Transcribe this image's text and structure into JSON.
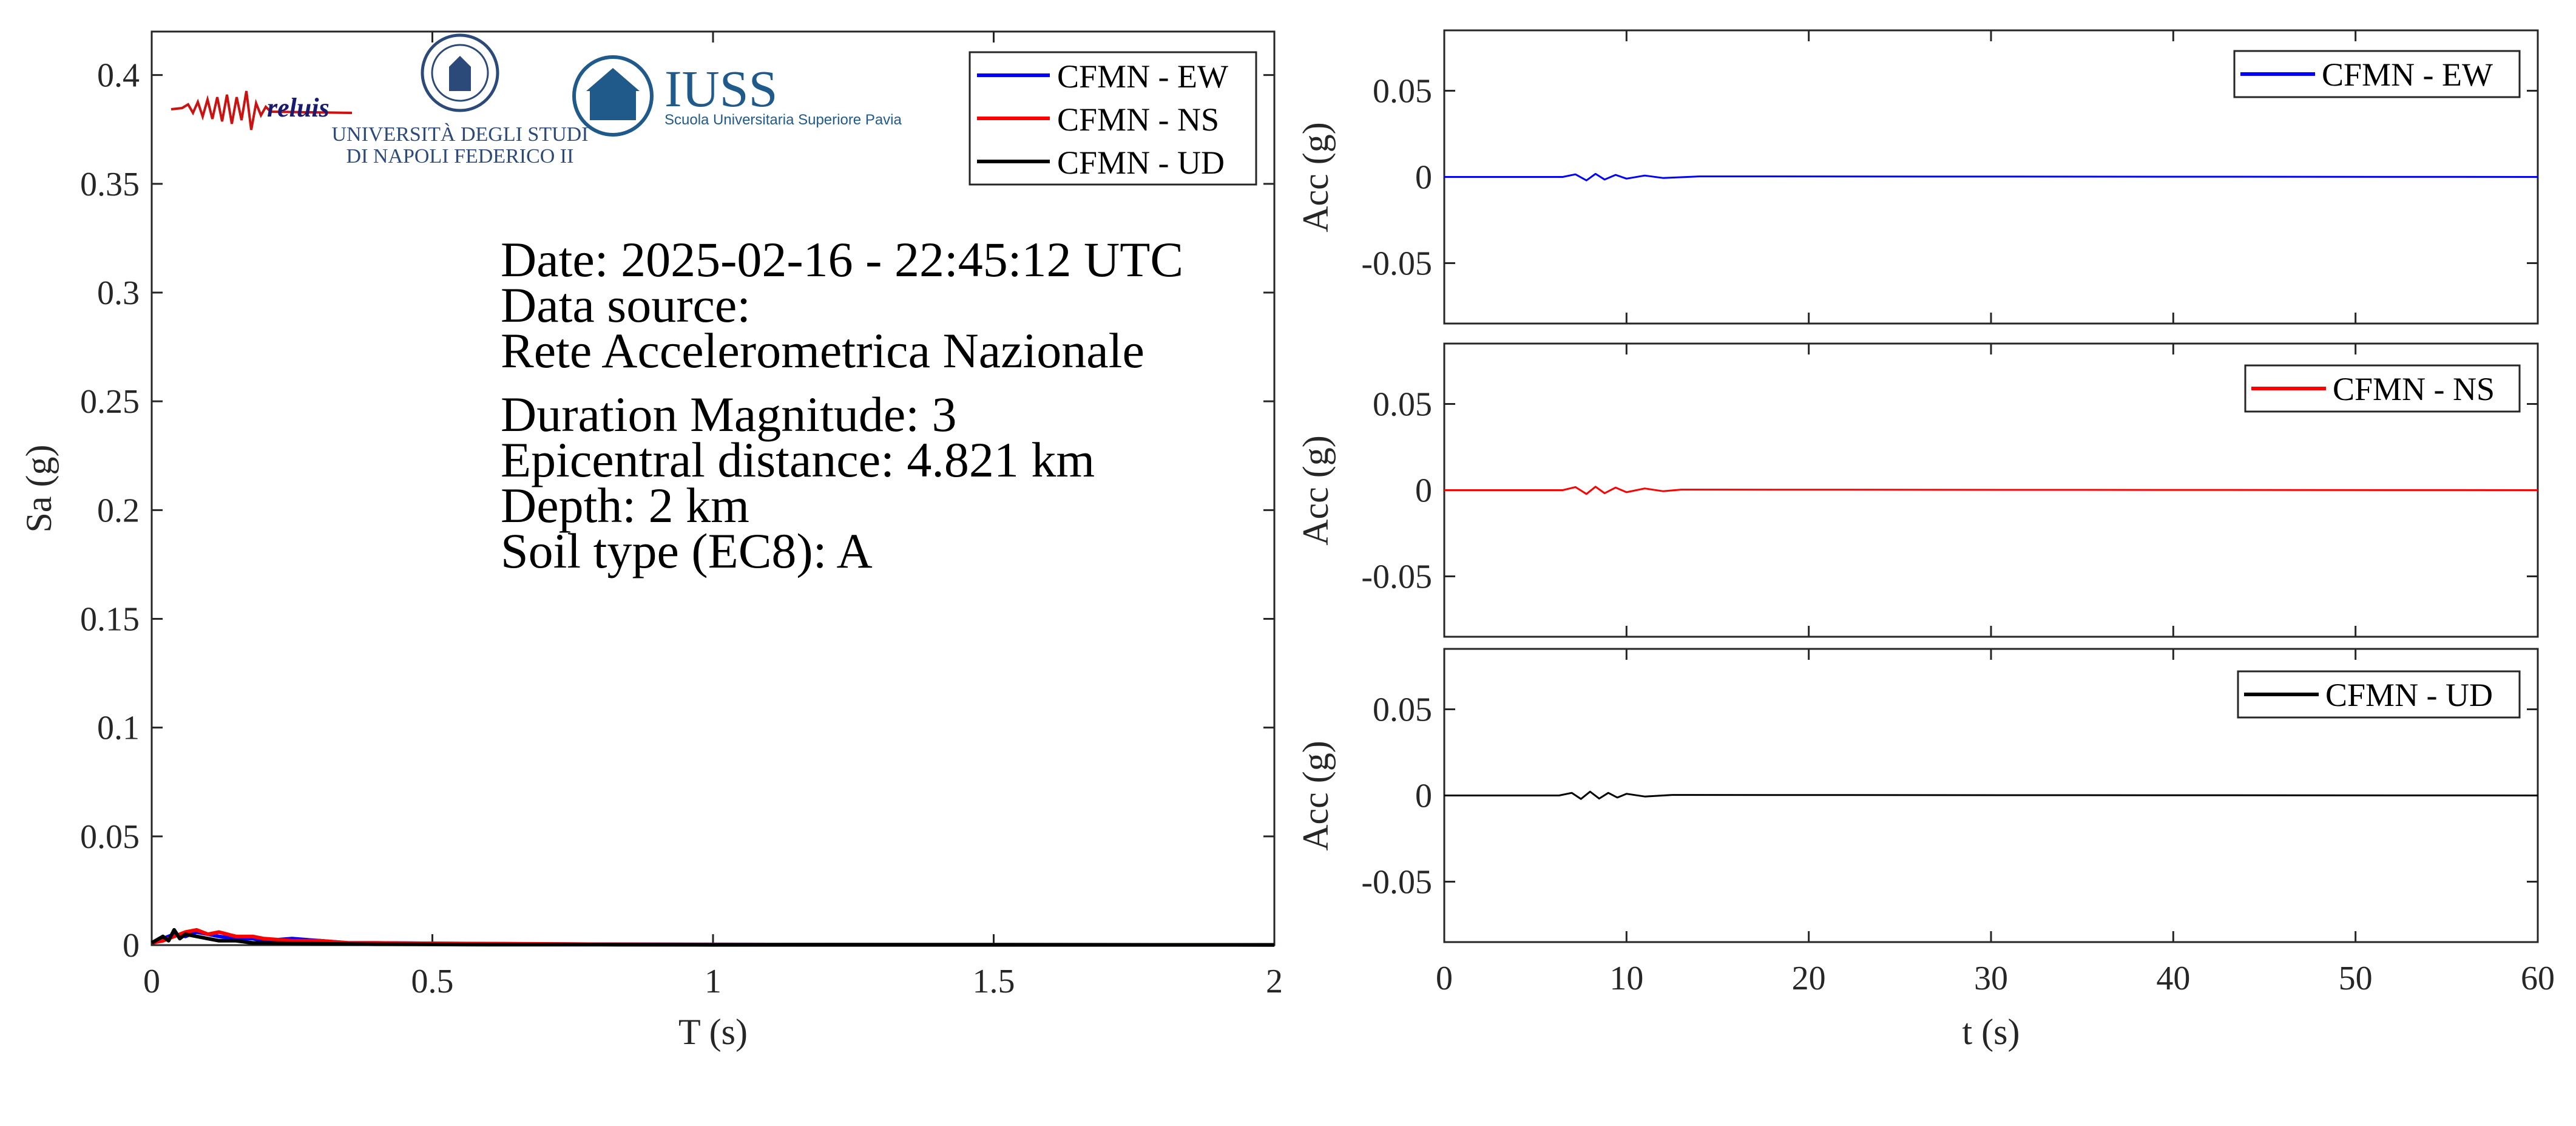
{
  "logos": {
    "reluis": "reluis",
    "unina_line1": "UNIVERSITÀ DEGLI STUDI",
    "unina_line2": "DI NAPOLI FEDERICO II",
    "iuss": "IUSS",
    "iuss_sub": "Scuola Universitaria Superiore Pavia"
  },
  "info": {
    "date": "Date: 2025-02-16 - 22:45:12 UTC",
    "source_label": "Data source:",
    "source_value": "Rete Accelerometrica Nazionale",
    "magnitude": "Duration Magnitude: 3",
    "distance": "Epicentral distance: 4.821 km",
    "depth": "Depth: 2 km",
    "soil": "Soil type (EC8): A"
  },
  "colors": {
    "ew": "#0000ff",
    "ns": "#ff0000",
    "ud": "#000000",
    "axis": "#262626"
  },
  "chart_data": [
    {
      "type": "line",
      "xlabel": "T (s)",
      "ylabel": "Sa (g)",
      "xlim": [
        0,
        2
      ],
      "ylim": [
        0,
        0.42
      ],
      "xticks": [
        0,
        0.5,
        1,
        1.5,
        2
      ],
      "xtick_labels": [
        "0",
        "0.5",
        "1",
        "1.5",
        "2"
      ],
      "yticks": [
        0,
        0.05,
        0.1,
        0.15,
        0.2,
        0.25,
        0.3,
        0.35,
        0.4
      ],
      "ytick_labels": [
        "0",
        "0.05",
        "0.1",
        "0.15",
        "0.2",
        "0.25",
        "0.3",
        "0.35",
        "0.4"
      ],
      "legend": "top-right",
      "grid": false,
      "series": [
        {
          "name": "CFMN - EW",
          "color": "#0000ff",
          "x": [
            0,
            0.02,
            0.04,
            0.06,
            0.08,
            0.1,
            0.12,
            0.15,
            0.18,
            0.2,
            0.25,
            0.3,
            0.35,
            0.4,
            0.5,
            0.6,
            0.8,
            1,
            1.5,
            2
          ],
          "y": [
            0.001,
            0.003,
            0.005,
            0.004,
            0.006,
            0.005,
            0.004,
            0.003,
            0.003,
            0.002,
            0.003,
            0.002,
            0.001,
            0.001,
            0.0008,
            0.0006,
            0.0004,
            0.0003,
            0.0002,
            0.0001
          ]
        },
        {
          "name": "CFMN - NS",
          "color": "#ff0000",
          "x": [
            0,
            0.02,
            0.04,
            0.06,
            0.08,
            0.1,
            0.12,
            0.15,
            0.18,
            0.2,
            0.25,
            0.3,
            0.35,
            0.4,
            0.5,
            0.6,
            0.8,
            1,
            1.5,
            2
          ],
          "y": [
            0.001,
            0.002,
            0.004,
            0.006,
            0.007,
            0.005,
            0.006,
            0.004,
            0.004,
            0.003,
            0.002,
            0.002,
            0.001,
            0.001,
            0.0008,
            0.0007,
            0.0004,
            0.0003,
            0.0002,
            0.0001
          ]
        },
        {
          "name": "CFMN - UD",
          "color": "#000000",
          "x": [
            0,
            0.02,
            0.03,
            0.04,
            0.05,
            0.06,
            0.08,
            0.1,
            0.12,
            0.15,
            0.18,
            0.2,
            0.25,
            0.3,
            0.4,
            0.5,
            0.6,
            0.8,
            1,
            1.5,
            2
          ],
          "y": [
            0.001,
            0.004,
            0.002,
            0.007,
            0.003,
            0.005,
            0.004,
            0.003,
            0.002,
            0.002,
            0.001,
            0.001,
            0.0008,
            0.0006,
            0.0004,
            0.0003,
            0.0002,
            0.0002,
            0.0001,
            0.0001,
            0.0001
          ]
        }
      ]
    },
    {
      "type": "line",
      "xlabel": "",
      "ylabel": "Acc (g)",
      "xlim": [
        0,
        60
      ],
      "ylim": [
        -0.085,
        0.085
      ],
      "yticks": [
        -0.05,
        0,
        0.05
      ],
      "ytick_labels": [
        "-0.05",
        "0",
        "0.05"
      ],
      "legend": "top-right",
      "grid": false,
      "series": [
        {
          "name": "CFMN - EW",
          "color": "#0000ff",
          "x": [
            0,
            6.5,
            7.2,
            7.8,
            8.3,
            8.8,
            9.4,
            10,
            11,
            12,
            14,
            60
          ],
          "y": [
            0,
            0,
            0.0015,
            -0.002,
            0.0018,
            -0.0015,
            0.0012,
            -0.001,
            0.0008,
            -0.0006,
            0.0003,
            0
          ]
        }
      ]
    },
    {
      "type": "line",
      "xlabel": "",
      "ylabel": "Acc (g)",
      "xlim": [
        0,
        60
      ],
      "ylim": [
        -0.085,
        0.085
      ],
      "yticks": [
        -0.05,
        0,
        0.05
      ],
      "ytick_labels": [
        "-0.05",
        "0",
        "0.05"
      ],
      "legend": "top-right",
      "grid": false,
      "series": [
        {
          "name": "CFMN - NS",
          "color": "#ff0000",
          "x": [
            0,
            6.5,
            7.2,
            7.8,
            8.3,
            8.8,
            9.4,
            10,
            11,
            12,
            13,
            60
          ],
          "y": [
            0,
            0,
            0.0018,
            -0.0022,
            0.002,
            -0.0018,
            0.0015,
            -0.0012,
            0.001,
            -0.0006,
            0.0003,
            0
          ]
        }
      ]
    },
    {
      "type": "line",
      "xlabel": "t (s)",
      "ylabel": "Acc (g)",
      "xlim": [
        0,
        60
      ],
      "ylim": [
        -0.085,
        0.085
      ],
      "xticks": [
        0,
        10,
        20,
        30,
        40,
        50,
        60
      ],
      "xtick_labels": [
        "0",
        "10",
        "20",
        "30",
        "40",
        "50",
        "60"
      ],
      "yticks": [
        -0.05,
        0,
        0.05
      ],
      "ytick_labels": [
        "-0.05",
        "0",
        "0.05"
      ],
      "legend": "top-right",
      "grid": false,
      "series": [
        {
          "name": "CFMN - UD",
          "color": "#000000",
          "x": [
            0,
            6.3,
            7,
            7.5,
            8,
            8.5,
            9,
            9.5,
            10,
            11,
            12.5,
            60
          ],
          "y": [
            0,
            0,
            0.0015,
            -0.002,
            0.0022,
            -0.0018,
            0.0015,
            -0.0012,
            0.001,
            -0.0006,
            0.0003,
            0
          ]
        }
      ]
    }
  ]
}
